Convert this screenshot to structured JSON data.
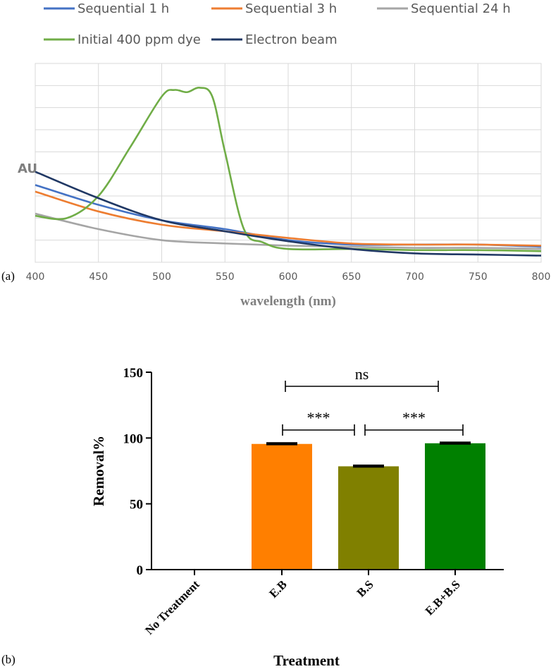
{
  "chart_data": [
    {
      "type": "line",
      "panel_label": "(a)",
      "xlabel": "wavelength (nm)",
      "ylabel": "AU",
      "xlim": [
        400,
        800
      ],
      "x_ticks": [
        400,
        450,
        500,
        550,
        600,
        650,
        700,
        750,
        800
      ],
      "ylim": [
        0,
        9
      ],
      "grid": "horizontal",
      "legend_position": "top",
      "series": [
        {
          "name": "Sequential 1 h",
          "color": "#4472C4",
          "x": [
            400,
            450,
            500,
            550,
            600,
            650,
            700,
            750,
            800
          ],
          "y": [
            3.5,
            2.6,
            1.9,
            1.5,
            1.0,
            0.8,
            0.8,
            0.8,
            0.7
          ]
        },
        {
          "name": "Sequential 3 h",
          "color": "#ED7D31",
          "x": [
            400,
            450,
            500,
            550,
            600,
            650,
            700,
            750,
            800
          ],
          "y": [
            3.2,
            2.3,
            1.7,
            1.4,
            1.1,
            0.85,
            0.8,
            0.8,
            0.75
          ]
        },
        {
          "name": "Sequential 24 h",
          "color": "#A5A5A5",
          "x": [
            400,
            450,
            500,
            550,
            600,
            650,
            700,
            750,
            800
          ],
          "y": [
            2.2,
            1.5,
            1.0,
            0.85,
            0.75,
            0.7,
            0.65,
            0.65,
            0.6
          ]
        },
        {
          "name": "Initial 400 ppm dye",
          "color": "#70AD47",
          "x": [
            400,
            425,
            450,
            475,
            500,
            510,
            520,
            530,
            540,
            550,
            565,
            580,
            600,
            650,
            700,
            750,
            800
          ],
          "y": [
            2.1,
            2.0,
            3.0,
            5.2,
            7.5,
            7.8,
            7.7,
            7.9,
            7.5,
            5.0,
            1.5,
            0.9,
            0.6,
            0.6,
            0.55,
            0.55,
            0.5
          ]
        },
        {
          "name": "Electron beam",
          "color": "#203864",
          "x": [
            400,
            450,
            500,
            550,
            600,
            650,
            700,
            750,
            800
          ],
          "y": [
            4.1,
            2.9,
            1.9,
            1.4,
            0.95,
            0.6,
            0.4,
            0.35,
            0.3
          ]
        }
      ]
    },
    {
      "type": "bar",
      "panel_label": "(b)",
      "xlabel": "Treatment",
      "ylabel": "Removal%",
      "ylim": [
        0,
        150
      ],
      "y_ticks": [
        0,
        50,
        100,
        150
      ],
      "categories": [
        "No Treatment",
        "E.B",
        "B.S",
        "E.B+B.S"
      ],
      "values": [
        0,
        95.5,
        78.5,
        96
      ],
      "errors": [
        0,
        0.5,
        0.5,
        0.5
      ],
      "colors": [
        "#FF7F00",
        "#FF7F00",
        "#808000",
        "#008000"
      ],
      "comparisons": [
        {
          "from": 1,
          "to": 3,
          "label": "ns"
        },
        {
          "from": 1,
          "to": 2,
          "label": "***"
        },
        {
          "from": 2,
          "to": 3,
          "label": "***"
        }
      ]
    }
  ]
}
